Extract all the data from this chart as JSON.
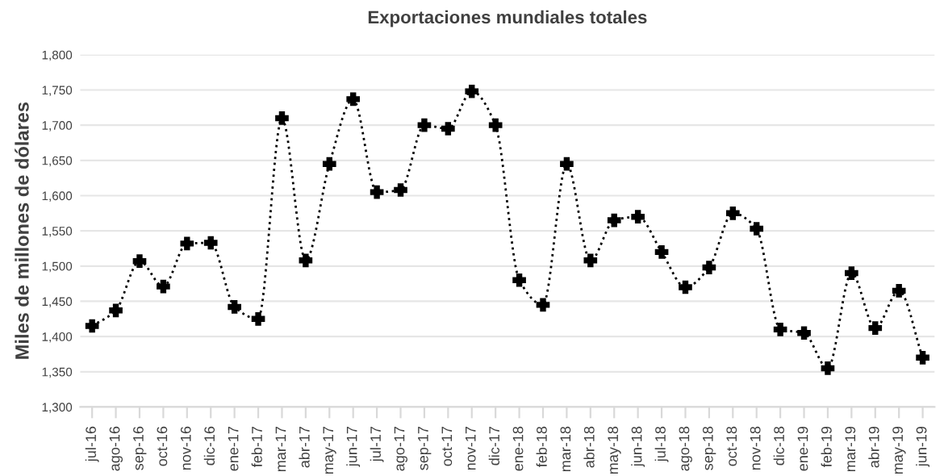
{
  "chart_data": {
    "type": "line",
    "title": "Exportaciones mundiales totales",
    "ylabel": "Miles de millones de dólares",
    "categories": [
      "jul-16",
      "ago-16",
      "sep-16",
      "oct-16",
      "nov-16",
      "dic-16",
      "ene-17",
      "feb-17",
      "mar-17",
      "abr-17",
      "may-17",
      "jun-17",
      "jul-17",
      "ago-17",
      "sep-17",
      "oct-17",
      "nov-17",
      "dic-17",
      "ene-18",
      "feb-18",
      "mar-18",
      "abr-18",
      "may-18",
      "jun-18",
      "jul-18",
      "ago-18",
      "sep-18",
      "oct-18",
      "nov-18",
      "dic-18",
      "ene-19",
      "feb-19",
      "mar-19",
      "abr-19",
      "may-19",
      "jun-19"
    ],
    "series": [
      {
        "color": "#000000",
        "values": [
          1415,
          1437,
          1507,
          1471,
          1532,
          1533,
          1442,
          1425,
          1710,
          1508,
          1645,
          1737,
          1605,
          1608,
          1700,
          1695,
          1748,
          1700,
          1480,
          1445,
          1645,
          1508,
          1565,
          1570,
          1520,
          1470,
          1498,
          1575,
          1553,
          1410,
          1405,
          1355,
          1490,
          1412,
          1465,
          1370
        ]
      }
    ],
    "ylim": [
      1300,
      1800
    ],
    "yticks": [
      {
        "value": 1300,
        "label": "1,300"
      },
      {
        "value": 1350,
        "label": "1,350"
      },
      {
        "value": 1400,
        "label": "1,400"
      },
      {
        "value": 1450,
        "label": "1,450"
      },
      {
        "value": 1500,
        "label": "1,500"
      },
      {
        "value": 1550,
        "label": "1,550"
      },
      {
        "value": 1600,
        "label": "1,600"
      },
      {
        "value": 1650,
        "label": "1,650"
      },
      {
        "value": 1700,
        "label": "1,700"
      },
      {
        "value": 1750,
        "label": "1,750"
      },
      {
        "value": 1800,
        "label": "1,800"
      }
    ],
    "grid": "y",
    "marker": "cross",
    "line_style": "dotted"
  }
}
